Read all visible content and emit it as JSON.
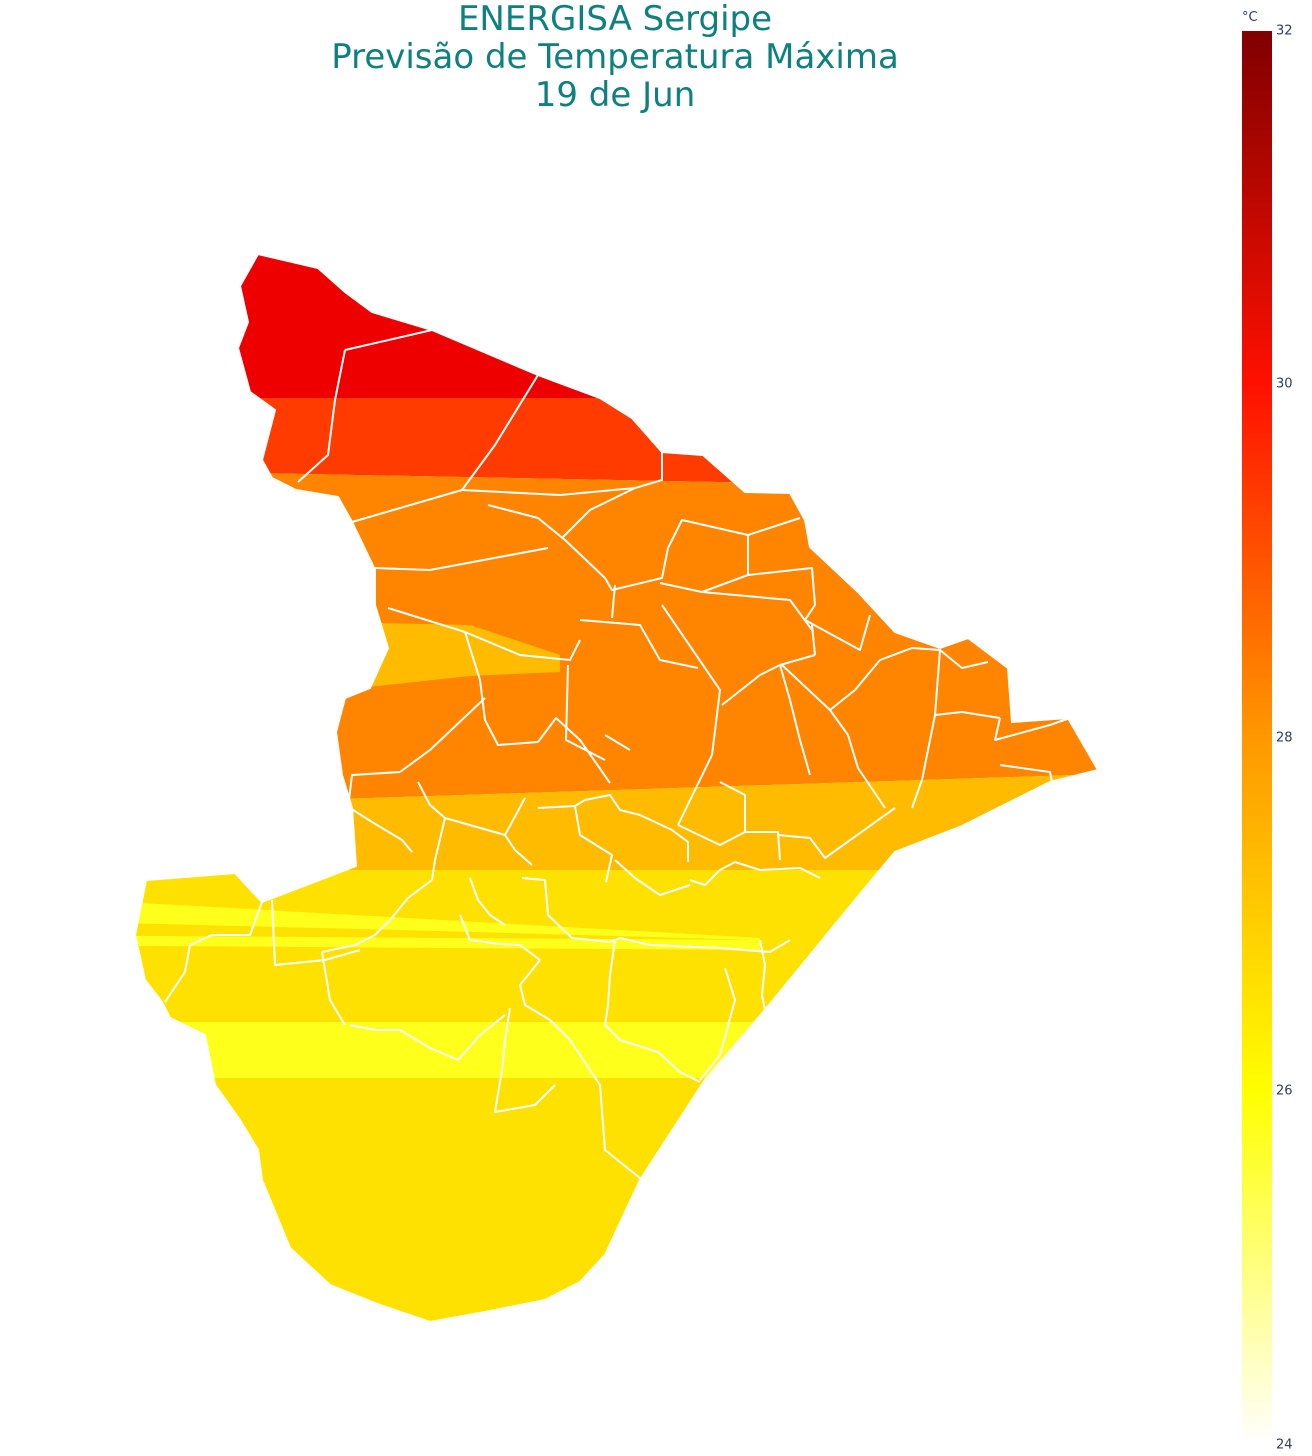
{
  "title": {
    "line1": "ENERGISA Sergipe",
    "line2": "Previsão de Temperatura Máxima",
    "line3": "19 de Jun"
  },
  "colorbar": {
    "unit": "°C",
    "min": 24,
    "max": 32,
    "ticks": [
      "32",
      "30",
      "28",
      "26",
      "24"
    ],
    "stops": [
      {
        "value": 24,
        "color": "#ffffff"
      },
      {
        "value": 26,
        "color": "#ffff00"
      },
      {
        "value": 28,
        "color": "#ff9800"
      },
      {
        "value": 30,
        "color": "#ff1000"
      },
      {
        "value": 32,
        "color": "#800000"
      }
    ]
  },
  "map": {
    "region": "Sergipe",
    "border_color": "#ffffff",
    "bands": [
      {
        "temp": 29.6,
        "color": "#ee0000"
      },
      {
        "temp": 29.0,
        "color": "#ff3b00"
      },
      {
        "temp": 28.2,
        "color": "#ff8400"
      },
      {
        "temp": 27.6,
        "color": "#ffbb00"
      },
      {
        "temp": 26.6,
        "color": "#ffe100"
      },
      {
        "temp": 26.2,
        "color": "#ffff1c"
      }
    ]
  }
}
